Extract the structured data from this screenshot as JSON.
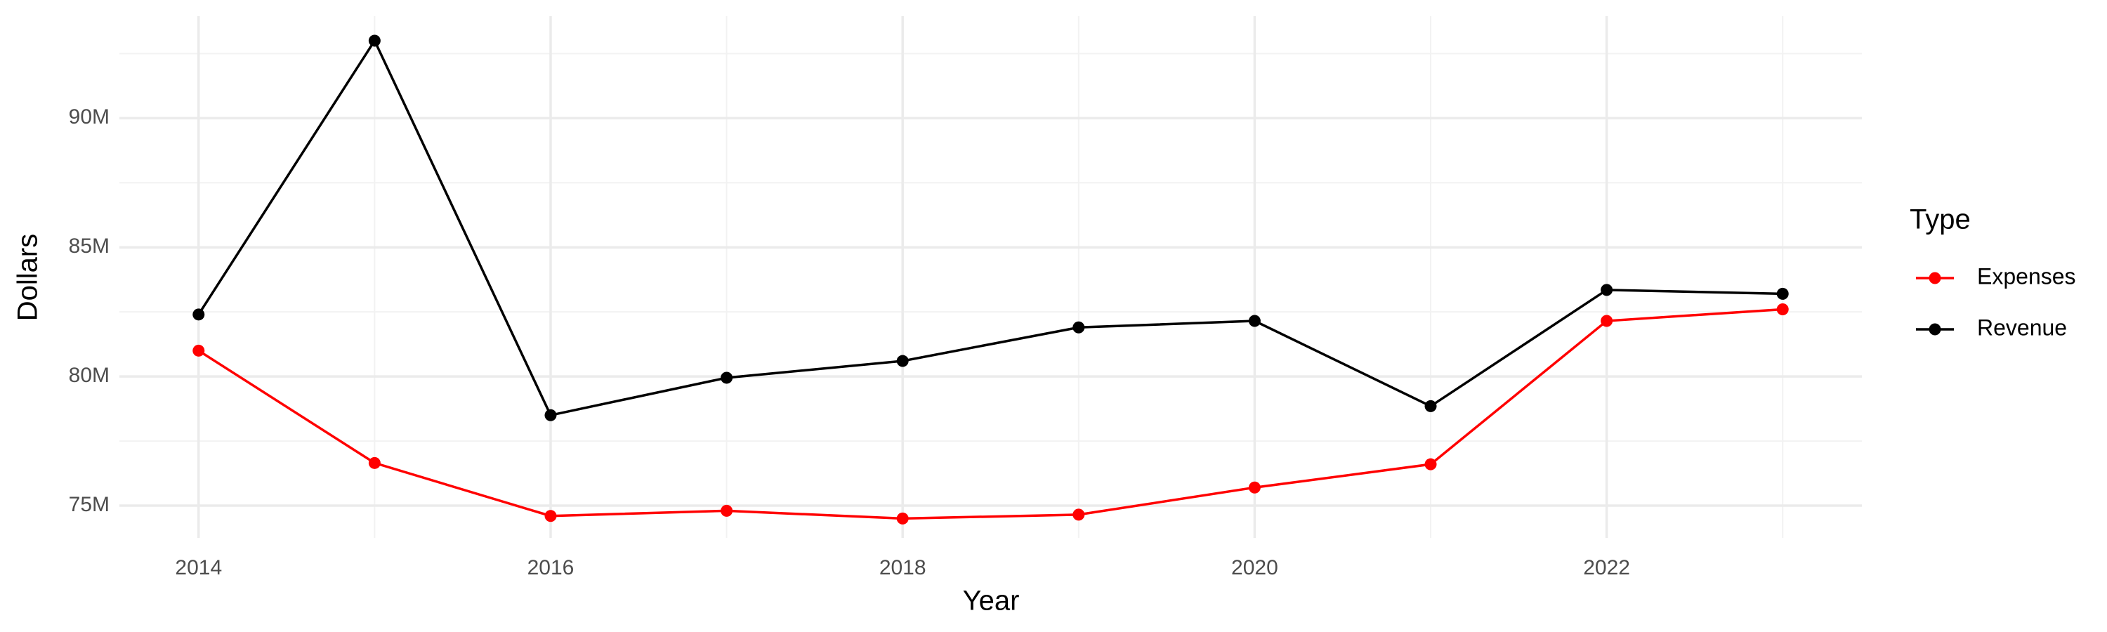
{
  "chart_data": {
    "type": "line",
    "x_label": "Year",
    "y_label": "Dollars",
    "x": [
      2014,
      2015,
      2016,
      2017,
      2018,
      2019,
      2020,
      2021,
      2022,
      2023
    ],
    "series": [
      {
        "name": "Expenses",
        "color": "#ff0000",
        "values": [
          81000000,
          76650000,
          74600000,
          74800000,
          74500000,
          74650000,
          75700000,
          76600000,
          82150000,
          82600000
        ]
      },
      {
        "name": "Revenue",
        "color": "#000000",
        "values": [
          82400000,
          93000000,
          78500000,
          79950000,
          80600000,
          81900000,
          82150000,
          78850000,
          83350000,
          83200000
        ]
      }
    ],
    "xlim": [
      2013.55,
      2023.45
    ],
    "xticks": [
      2014,
      2016,
      2018,
      2020,
      2022
    ],
    "ylim": [
      73750000,
      93950000
    ],
    "yticks": [
      {
        "value": 75000000,
        "label": "75M"
      },
      {
        "value": 80000000,
        "label": "80M"
      },
      {
        "value": 85000000,
        "label": "85M"
      },
      {
        "value": 90000000,
        "label": "90M"
      }
    ],
    "grid": true,
    "minor_grid": true,
    "legend": {
      "title": "Type",
      "position": "right"
    }
  }
}
